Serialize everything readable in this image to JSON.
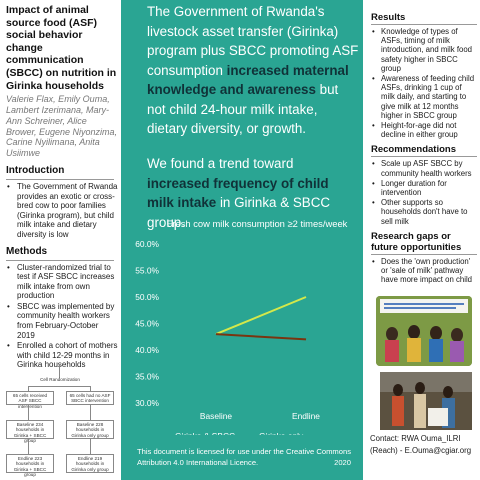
{
  "left": {
    "title": "Impact of animal source food (ASF) social behavior change communication (SBCC) on nutrition in Girinka households",
    "authors": "Valerie Flax, Emily Ouma, Lambert Izerimana, Mary-Ann Schreiner, Alice Brower, Eugene Niyonzima, Carine Nyilimana, Anita Usiimwe",
    "intro_heading": "Introduction",
    "intro_items": [
      "The Government of Rwanda provides an exotic or cross-bred cow to poor families (Girinka program), but child milk intake and dietary diversity is low"
    ],
    "methods_heading": "Methods",
    "methods_items": [
      "Cluster-randomized trial to test if ASF SBCC increases milk intake from own production",
      "SBCC was implemented by community health workers from February-October 2019",
      "Enrolled a cohort of mothers with child 12-29 months in Girinka households"
    ]
  },
  "flow": {
    "cell_random": "Cell Randomization",
    "left_arm": "65 cells received ASF SBCC intervention",
    "right_arm": "65 cells had no ASF SBCC intervention",
    "bl_left": "Baseline 234 households in Girinka + SBCC group",
    "bl_right": "Baseline 228 households in Girinka only group",
    "el_left": "Endline 223 households in Girinka + SBCC group",
    "el_right": "Endline 219 households in Girinka only group"
  },
  "mid": {
    "p1_a": "The Government of Rwanda's livestock asset transfer (Girinka) program plus SBCC promoting ASF consumption ",
    "p1_b": "increased maternal knowledge and awareness",
    "p1_c": " but not child 24-hour milk intake, dietary diversity, or growth.",
    "p2_a": "We found a trend toward ",
    "p2_b": "increased frequency of child milk intake",
    "p2_c": " in Girinka & SBCC group.",
    "license": "This document is licensed for use under the Creative Commons Attribution 4.0 International Licence.",
    "license_year": "2020"
  },
  "chart_data": {
    "type": "line",
    "title": "Fresh cow milk consumption ≥2 times/week",
    "categories": [
      "Baseline",
      "Endline"
    ],
    "ylim": [
      0.3,
      0.6
    ],
    "yticks": [
      "30.0%",
      "35.0%",
      "40.0%",
      "45.0%",
      "50.0%",
      "55.0%",
      "60.0%"
    ],
    "series": [
      {
        "name": "Girinka & SBCC",
        "values": [
          0.43,
          0.5
        ],
        "color": "#d4e84a"
      },
      {
        "name": "Girinka only",
        "values": [
          0.43,
          0.42
        ],
        "color": "#7a3510"
      }
    ],
    "grid": false,
    "legend": "bottom"
  },
  "right": {
    "results_heading": "Results",
    "results_items": [
      "Knowledge of types of ASFs, timing of milk introduction, and milk food safety higher in SBCC group",
      "Awareness of feeding child ASFs, drinking 1 cup of milk daily, and starting to give milk at 12 months higher in SBCC group",
      "Height-for-age did not decline in either group"
    ],
    "rec_heading": "Recommendations",
    "rec_items": [
      "Scale up ASF SBCC by community health workers",
      "Longer duration for intervention",
      "Other supports so households don't have to sell milk"
    ],
    "gaps_heading": "Research gaps or future opportunities",
    "gaps_items": [
      "Does the 'own production' or 'sale of milk' pathway have more impact on child"
    ],
    "contact": "Contact: RWA Ouma_ILRI (Reach) - E.Ouma@cgiar.org"
  }
}
